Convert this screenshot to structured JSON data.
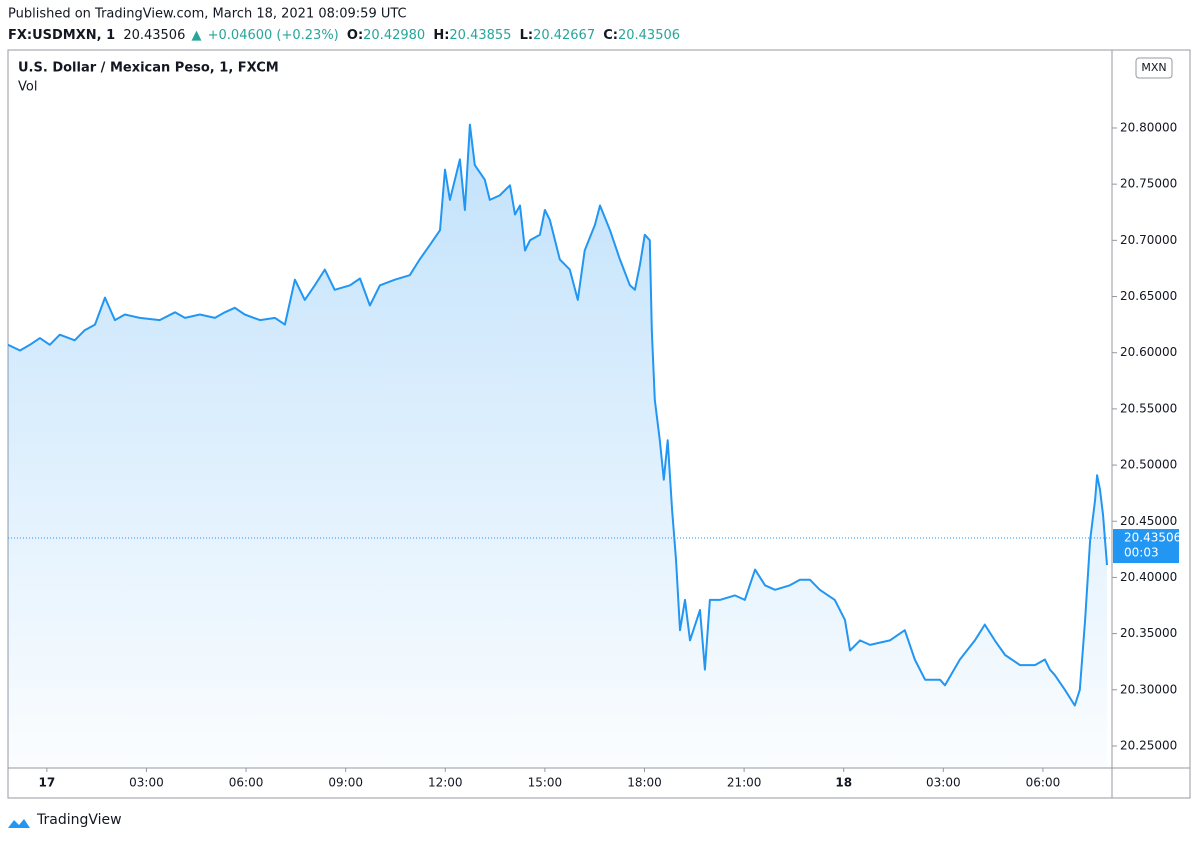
{
  "header": {
    "published": "Published on TradingView.com, March 18, 2021 08:09:59 UTC",
    "symbol": "FX:USDMXN, 1",
    "price": "20.43506",
    "arrow": "▲",
    "change": "+0.04600 (+0.23%)",
    "o_label": "O:",
    "o": "20.42980",
    "h_label": "H:",
    "h": "20.43855",
    "l_label": "L:",
    "l": "20.42667",
    "c_label": "C:",
    "c": "20.43506"
  },
  "chart_data": {
    "type": "area",
    "title": "U.S. Dollar / Mexican Peso, 1, FXCM",
    "subtitle": "Vol",
    "currency": "MXN",
    "color": "#2196f3",
    "x": [
      -1.17,
      -0.81,
      -0.51,
      -0.21,
      0.09,
      0.39,
      0.84,
      1.14,
      1.45,
      1.75,
      2.05,
      2.35,
      2.8,
      3.4,
      3.86,
      4.16,
      4.61,
      5.06,
      5.36,
      5.66,
      5.96,
      6.42,
      6.87,
      7.17,
      7.47,
      7.77,
      8.07,
      8.37,
      8.67,
      9.13,
      9.43,
      9.73,
      10.03,
      10.48,
      10.93,
      11.23,
      11.54,
      11.84,
      11.99,
      12.14,
      12.44,
      12.59,
      12.74,
      12.89,
      13.19,
      13.34,
      13.64,
      13.95,
      14.1,
      14.25,
      14.4,
      14.55,
      14.85,
      15.0,
      15.15,
      15.45,
      15.75,
      15.99,
      16.2,
      16.51,
      16.66,
      16.96,
      17.26,
      17.56,
      17.71,
      17.86,
      18.01,
      18.16,
      18.22,
      18.31,
      18.46,
      18.58,
      18.7,
      18.83,
      18.95,
      19.07,
      19.22,
      19.37,
      19.67,
      19.82,
      19.97,
      20.27,
      20.72,
      21.02,
      21.33,
      21.63,
      21.93,
      22.38,
      22.68,
      22.98,
      23.28,
      23.73,
      24.04,
      24.19,
      24.49,
      24.79,
      25.39,
      25.84,
      26.14,
      26.45,
      26.9,
      27.05,
      27.5,
      27.95,
      28.25,
      28.55,
      28.86,
      29.31,
      29.76,
      30.06,
      30.21,
      30.36,
      30.66,
      30.96,
      31.11,
      31.27,
      31.42,
      31.57,
      31.63,
      31.72,
      31.81,
      31.93
    ],
    "values": [
      20.607,
      20.602,
      20.607,
      20.613,
      20.607,
      20.616,
      20.611,
      20.62,
      20.625,
      20.649,
      20.629,
      20.634,
      20.631,
      20.629,
      20.636,
      20.631,
      20.634,
      20.631,
      20.636,
      20.64,
      20.634,
      20.629,
      20.631,
      20.625,
      20.665,
      20.647,
      20.66,
      20.674,
      20.656,
      20.66,
      20.666,
      20.642,
      20.66,
      20.665,
      20.669,
      20.683,
      20.696,
      20.709,
      20.763,
      20.736,
      20.772,
      20.727,
      20.803,
      20.767,
      20.754,
      20.736,
      20.74,
      20.749,
      20.723,
      20.731,
      20.691,
      20.7,
      20.705,
      20.727,
      20.718,
      20.683,
      20.674,
      20.647,
      20.691,
      20.714,
      20.731,
      20.709,
      20.683,
      20.66,
      20.656,
      20.678,
      20.705,
      20.7,
      20.62,
      20.558,
      20.522,
      20.487,
      20.522,
      20.46,
      20.416,
      20.353,
      20.38,
      20.344,
      20.371,
      20.318,
      20.38,
      20.38,
      20.384,
      20.38,
      20.407,
      20.393,
      20.389,
      20.393,
      20.398,
      20.398,
      20.389,
      20.38,
      20.362,
      20.335,
      20.344,
      20.34,
      20.344,
      20.353,
      20.327,
      20.309,
      20.309,
      20.304,
      20.327,
      20.344,
      20.358,
      20.344,
      20.331,
      20.322,
      20.322,
      20.327,
      20.318,
      20.313,
      20.3,
      20.286,
      20.3,
      20.362,
      20.433,
      20.469,
      20.491,
      20.478,
      20.456,
      20.411
    ],
    "last_price": 20.43506,
    "countdown": "00:03",
    "xlim": [
      -1.17,
      32.08
    ],
    "ylim": [
      20.2304,
      20.8694
    ],
    "xticks": [
      {
        "value": 0,
        "label": "17"
      },
      {
        "value": 3,
        "label": "03:00"
      },
      {
        "value": 6,
        "label": "06:00"
      },
      {
        "value": 9,
        "label": "09:00"
      },
      {
        "value": 12,
        "label": "12:00"
      },
      {
        "value": 15,
        "label": "15:00"
      },
      {
        "value": 18,
        "label": "18:00"
      },
      {
        "value": 21,
        "label": "21:00"
      },
      {
        "value": 24,
        "label": "18"
      },
      {
        "value": 27,
        "label": "03:00"
      },
      {
        "value": 30,
        "label": "06:00"
      }
    ],
    "yticks": [
      {
        "value": 20.25,
        "label": "20.25000"
      },
      {
        "value": 20.3,
        "label": "20.30000"
      },
      {
        "value": 20.35,
        "label": "20.35000"
      },
      {
        "value": 20.4,
        "label": "20.40000"
      },
      {
        "value": 20.45,
        "label": "20.45000"
      },
      {
        "value": 20.5,
        "label": "20.50000"
      },
      {
        "value": 20.55,
        "label": "20.55000"
      },
      {
        "value": 20.6,
        "label": "20.60000"
      },
      {
        "value": 20.65,
        "label": "20.65000"
      },
      {
        "value": 20.7,
        "label": "20.70000"
      },
      {
        "value": 20.75,
        "label": "20.75000"
      },
      {
        "value": 20.8,
        "label": "20.80000"
      }
    ]
  },
  "footer": {
    "brand": "TradingView"
  }
}
